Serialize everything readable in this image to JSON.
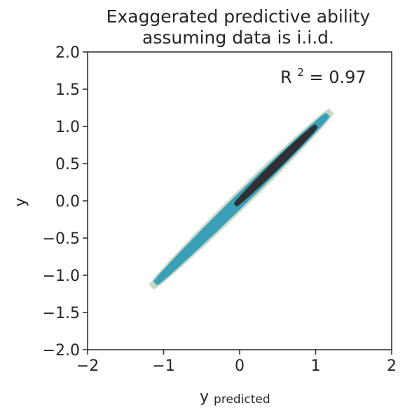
{
  "chart_data": {
    "type": "kde-density",
    "title_lines": [
      "Exaggerated predictive ability",
      "assuming data is i.i.d."
    ],
    "xlabel": "y",
    "xlabel_subscript": "predicted",
    "ylabel": "y",
    "xlim": [
      -2,
      2
    ],
    "ylim": [
      -2,
      2
    ],
    "xticks": [
      -2,
      -1,
      0,
      1,
      2
    ],
    "xtick_labels": [
      "−2",
      "−1",
      "0",
      "1",
      "2"
    ],
    "yticks": [
      -2.0,
      -1.5,
      -1.0,
      -0.5,
      0.0,
      0.5,
      1.0,
      1.5,
      2.0
    ],
    "ytick_labels": [
      "−2.0",
      "−1.5",
      "−1.0",
      "−0.5",
      "0.0",
      "0.5",
      "1.0",
      "1.5",
      "2.0"
    ],
    "grid": false,
    "annotation": {
      "text": "R",
      "superscript": "2",
      "suffix": " = 0.97",
      "placement": "top-right"
    },
    "density": {
      "description": "density along the diagonal y = y_predicted",
      "levels": [
        {
          "level": "outer",
          "color": "#c7dac8",
          "range": [
            -1.15,
            1.2
          ],
          "half_width": 0.1
        },
        {
          "level": "mid",
          "color": "#3a9fb7",
          "range": [
            -1.1,
            1.15
          ],
          "half_width": 0.07
        },
        {
          "level": "inner",
          "color": "#2e3034",
          "range": [
            -0.05,
            1.0
          ],
          "half_width": 0.045
        }
      ]
    }
  }
}
